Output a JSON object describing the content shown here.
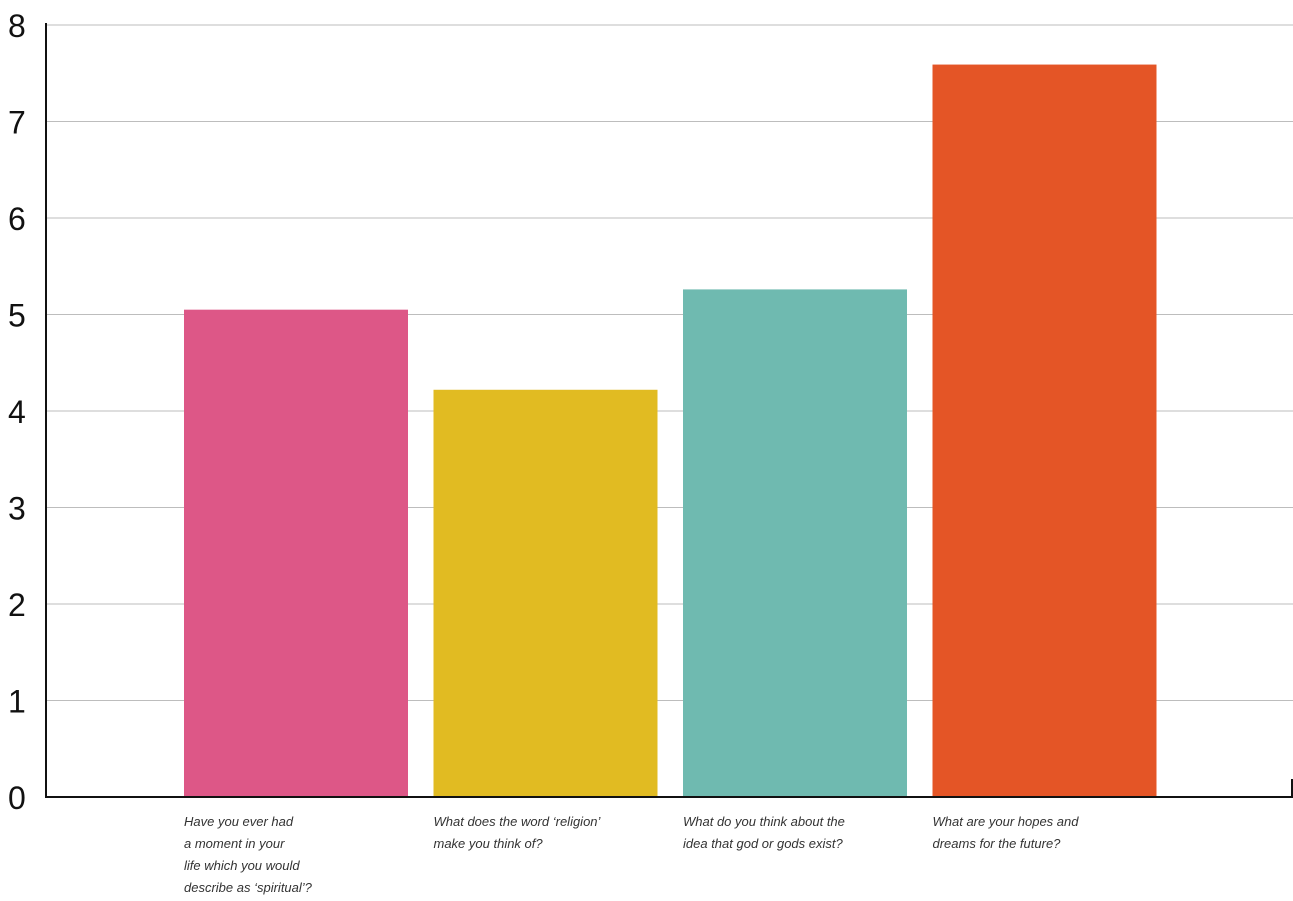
{
  "chart_data": {
    "type": "bar",
    "title": "",
    "xlabel": "",
    "ylabel": "",
    "ylim": [
      0,
      8
    ],
    "yticks": [
      0,
      1,
      2,
      3,
      4,
      5,
      6,
      7,
      8
    ],
    "grid": true,
    "categories": [
      [
        "Have you ever had",
        "a moment in your",
        "life which you would",
        "describe as ‘spiritual’?"
      ],
      [
        "What does the word ‘religion’",
        "make you think of?"
      ],
      [
        "What do you think about the",
        "idea that god or gods exist?"
      ],
      [
        "What are your hopes and",
        "dreams for the future?"
      ]
    ],
    "values": [
      5.05,
      4.22,
      5.26,
      7.59
    ],
    "colors": [
      "#dd5787",
      "#e1bb22",
      "#6fbab0",
      "#e45526"
    ]
  }
}
